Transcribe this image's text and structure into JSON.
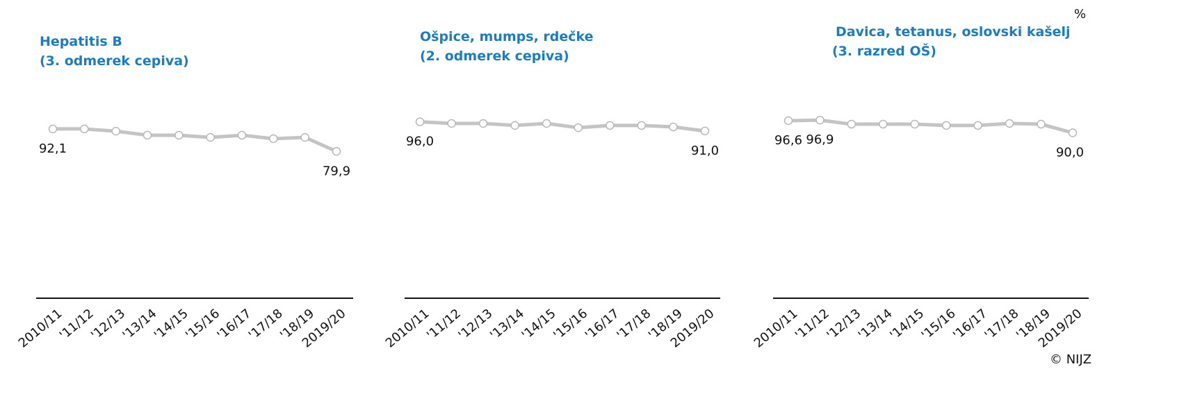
{
  "chart_data": [
    {
      "type": "line",
      "title": [
        "Hepatitis B",
        "(3. odmerek cepiva)"
      ],
      "categories": [
        "2010/11",
        "'11/12",
        "'12/13",
        "'13/14",
        "'14/15",
        "'15/16",
        "'16/17",
        "'17/18",
        "'18/19",
        "2019/20"
      ],
      "values": [
        92.1,
        92.1,
        90.9,
        88.7,
        88.7,
        87.5,
        88.7,
        86.8,
        87.5,
        79.9
      ],
      "value_labels": [
        "92,1",
        null,
        null,
        null,
        null,
        null,
        null,
        null,
        null,
        "79,9"
      ],
      "color": "#c4c4c4",
      "ylim": [
        0,
        100
      ]
    },
    {
      "type": "line",
      "title": [
        "Ošpice, mumps, rdečke",
        "(2. odmerek cepiva)"
      ],
      "categories": [
        "2010/11",
        "'11/12",
        "'12/13",
        "'13/14",
        "'14/15",
        "'15/16",
        "'16/17",
        "'17/18",
        "'18/19",
        "2019/20"
      ],
      "values": [
        96.0,
        95.1,
        95.1,
        94.0,
        95.1,
        92.8,
        94.0,
        94.0,
        93.2,
        91.0
      ],
      "value_labels": [
        "96,0",
        null,
        null,
        null,
        null,
        null,
        null,
        null,
        null,
        "91,0"
      ],
      "color": "#c4c4c4",
      "ylim": [
        0,
        100
      ]
    },
    {
      "type": "line",
      "title": [
        "Davica, tetanus, oslovski kašelj",
        "(3. razred OŠ)"
      ],
      "categories": [
        "2010/11",
        "'11/12",
        "'12/13",
        "'13/14",
        "'14/15",
        "'15/16",
        "'16/17",
        "'17/18",
        "'18/19",
        "2019/20"
      ],
      "values": [
        96.6,
        96.9,
        94.7,
        94.7,
        94.7,
        94.0,
        94.0,
        95.1,
        94.7,
        90.0
      ],
      "value_labels": [
        "96,6",
        "96,9",
        null,
        null,
        null,
        null,
        null,
        null,
        null,
        "90,0"
      ],
      "color": "#c4c4c4",
      "ylim": [
        0,
        100
      ]
    }
  ],
  "unit": "%",
  "source": "© NIJZ"
}
